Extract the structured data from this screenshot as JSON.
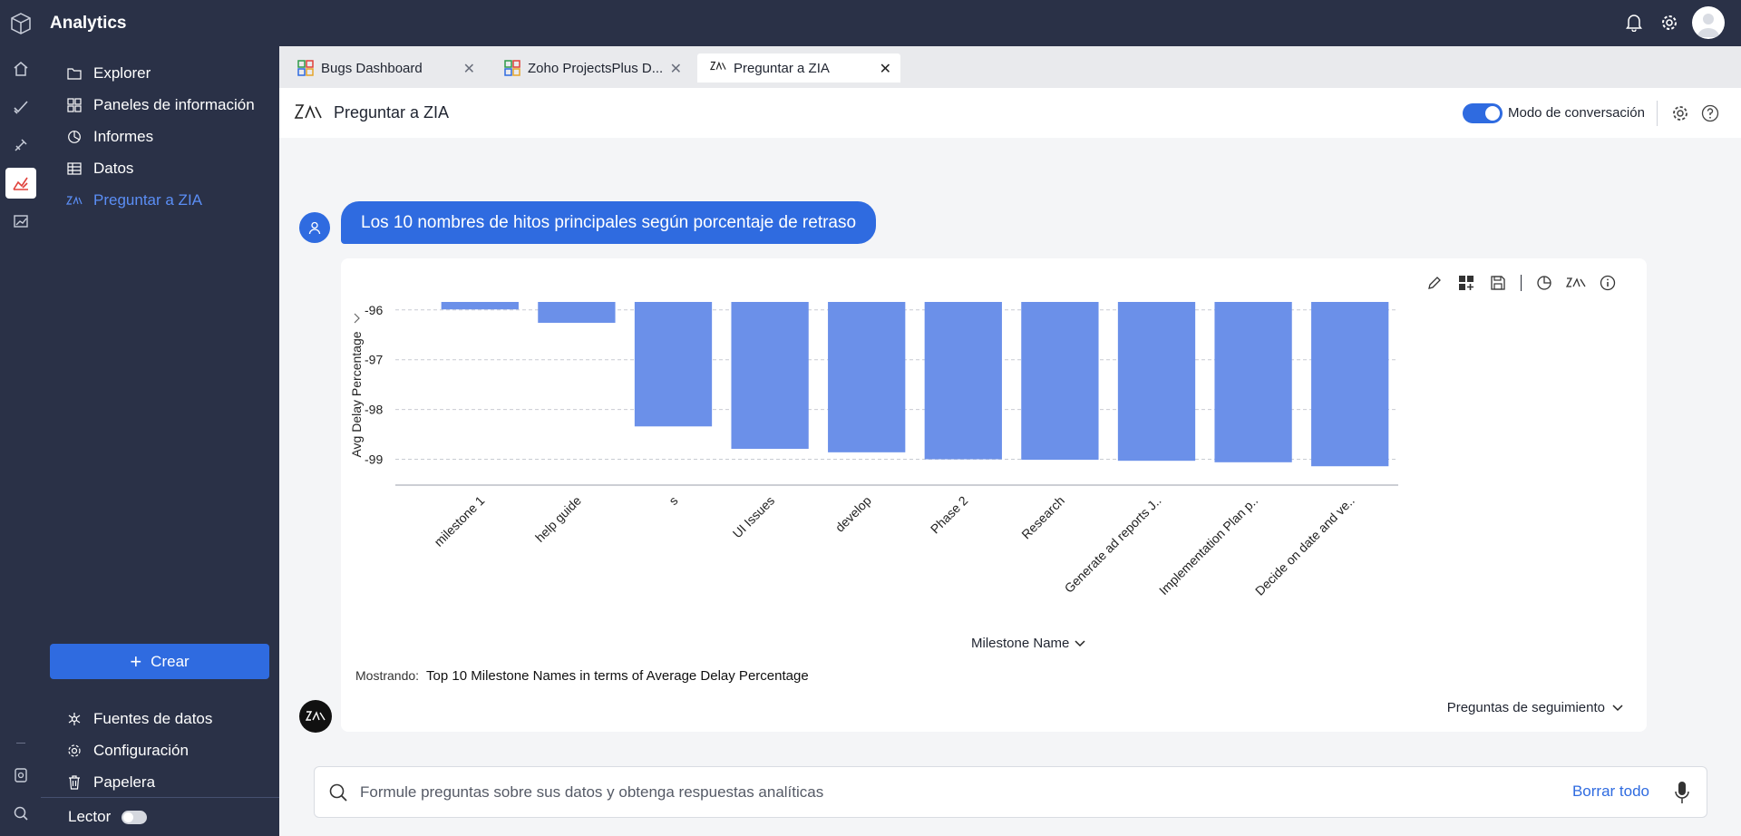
{
  "app": {
    "title": "Analytics"
  },
  "rail": [
    "home-icon",
    "tasks-icon",
    "issues-icon",
    "analytics-icon",
    "reports-icon",
    "feedback-icon",
    "search-icon"
  ],
  "sidebar": {
    "items": [
      {
        "label": "Explorer",
        "icon": "folder-icon"
      },
      {
        "label": "Paneles de información",
        "icon": "dashboard-icon"
      },
      {
        "label": "Informes",
        "icon": "report-icon"
      },
      {
        "label": "Datos",
        "icon": "table-icon"
      },
      {
        "label": "Preguntar a ZIA",
        "icon": "zia-icon"
      }
    ],
    "create_label": "Crear",
    "bottom_items": [
      {
        "label": "Fuentes de datos",
        "icon": "datasource-icon"
      },
      {
        "label": "Configuración",
        "icon": "gear-icon"
      },
      {
        "label": "Papelera",
        "icon": "trash-icon"
      }
    ],
    "reader_label": "Lector"
  },
  "tabs": [
    {
      "label": "Bugs Dashboard"
    },
    {
      "label": "Zoho ProjectsPlus D..."
    },
    {
      "label": "Preguntar a ZIA"
    }
  ],
  "page": {
    "title": "Preguntar a ZIA",
    "conversation_mode_label": "Modo de conversación"
  },
  "question": "Los 10 nombres de hitos principales según porcentaje de retraso",
  "answer": {
    "xaxis_selector": "Milestone Name",
    "showing_label": "Mostrando:",
    "showing_text": "Top 10 Milestone Names in terms of Average Delay Percentage",
    "followup_label": "Preguntas de seguimiento"
  },
  "chart_data": {
    "type": "bar",
    "categories": [
      "milestone 1",
      "help guide",
      "s",
      "UI Issues",
      "develop",
      "Phase 2",
      "Research",
      "Generate ad reports J..",
      "Implementation Plan p..",
      "Decide on date and ve.."
    ],
    "values": [
      -95.99,
      -96.26,
      -98.34,
      -98.79,
      -98.86,
      -99.0,
      -99.01,
      -99.03,
      -99.06,
      -99.14
    ],
    "ylabel": "Avg Delay Percentage",
    "xlabel": "Milestone Name",
    "yticks": [
      -96,
      -97,
      -98,
      -99
    ],
    "ylim": [
      -99.3,
      -95.84
    ],
    "color": "#6b90e9",
    "grid": true
  },
  "ask": {
    "placeholder": "Formule preguntas sobre sus datos y obtenga respuestas analíticas",
    "clear_label": "Borrar todo"
  }
}
